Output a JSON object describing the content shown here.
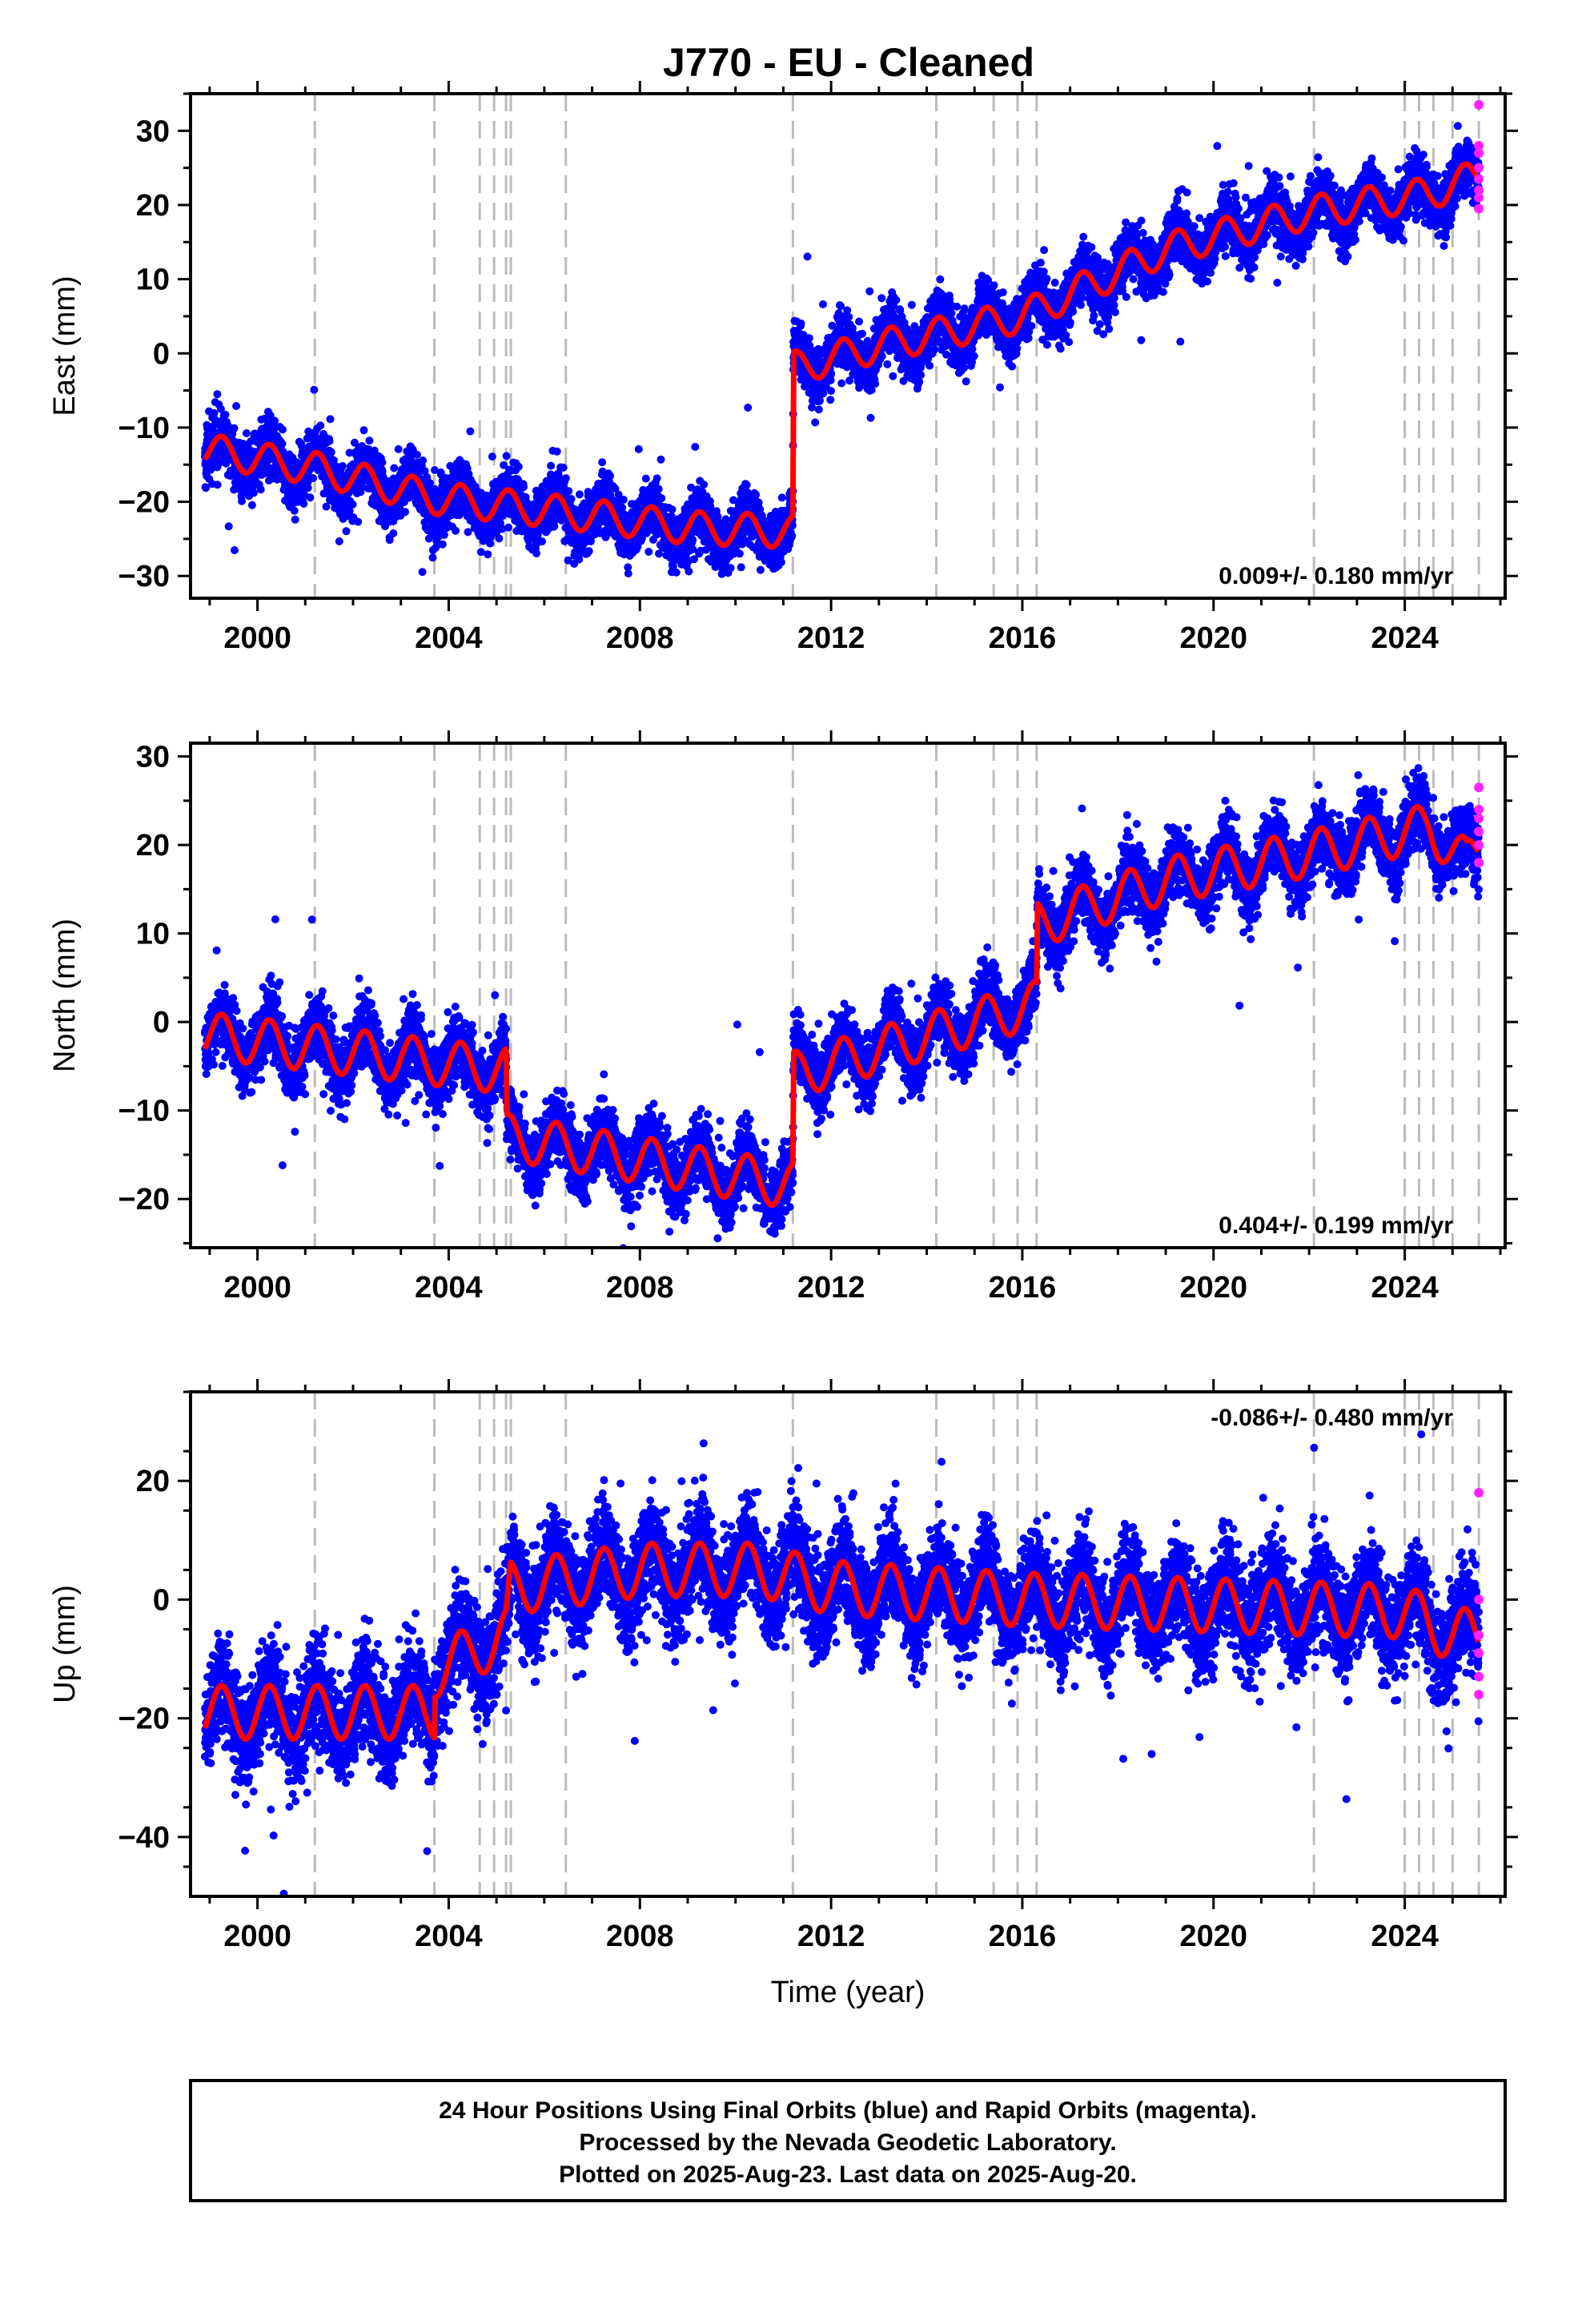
{
  "title": "J770  - EU - Cleaned",
  "colors": {
    "final_orbits": "#0000ff",
    "rapid_orbits": "#ff22ff",
    "model": "#ff0000",
    "offsets": "#bbbbbb"
  },
  "chart_data": [
    {
      "type": "scatter",
      "panel": "east",
      "ylabel": "East (mm)",
      "xlabel": "",
      "xlim": [
        1998.6,
        2026.1
      ],
      "ylim": [
        -33,
        35
      ],
      "xticks": [
        "2000",
        "2004",
        "2008",
        "2012",
        "2016",
        "2020",
        "2024"
      ],
      "yticks": [
        "30",
        "20",
        "10",
        "0",
        "−10",
        "−20",
        "−30"
      ],
      "ytick_values": [
        30,
        20,
        10,
        0,
        -10,
        -20,
        -30
      ],
      "rate_label": "0.009+/- 0.180 mm/yr",
      "rate_position": "bottom-right",
      "offset_epochs": [
        2001.2,
        2003.7,
        2004.65,
        2004.95,
        2005.2,
        2005.3,
        2006.45,
        2011.2,
        2014.2,
        2015.4,
        2015.9,
        2016.3,
        2022.1,
        2024.0,
        2024.3,
        2024.6,
        2025.0,
        2025.55
      ],
      "trend": [
        [
          1998.9,
          -13
        ],
        [
          2001.2,
          -15.5
        ],
        [
          2003.7,
          -19.5
        ],
        [
          2006.5,
          -21.5
        ],
        [
          2009.0,
          -23.5
        ],
        [
          2011.2,
          -24
        ],
        [
          2011.21,
          -2
        ],
        [
          2013.0,
          1
        ],
        [
          2016.0,
          5
        ],
        [
          2019.0,
          14
        ],
        [
          2022.0,
          19
        ],
        [
          2024.5,
          21.5
        ],
        [
          2025.55,
          24
        ]
      ],
      "annual_amplitude": 2.2,
      "noise_sd": 1.8,
      "rapid_points": [
        [
          2025.55,
          33.5
        ],
        [
          2025.55,
          28
        ],
        [
          2025.55,
          27
        ],
        [
          2025.55,
          25
        ],
        [
          2025.55,
          23.5
        ],
        [
          2025.55,
          22
        ],
        [
          2025.55,
          21
        ],
        [
          2025.55,
          19.5
        ]
      ]
    },
    {
      "type": "scatter",
      "panel": "north",
      "ylabel": "North (mm)",
      "xlabel": "",
      "xlim": [
        1998.6,
        2026.1
      ],
      "ylim": [
        -25.5,
        31.5
      ],
      "xticks": [
        "2000",
        "2004",
        "2008",
        "2012",
        "2016",
        "2020",
        "2024"
      ],
      "yticks": [
        "30",
        "20",
        "10",
        "0",
        "−10",
        "−20"
      ],
      "ytick_values": [
        30,
        20,
        10,
        0,
        -10,
        -20
      ],
      "rate_label": "0.404+/- 0.199 mm/yr",
      "rate_position": "bottom-right",
      "offset_epochs": [
        2001.2,
        2003.7,
        2004.65,
        2004.95,
        2005.2,
        2005.3,
        2006.45,
        2011.2,
        2014.2,
        2015.4,
        2015.9,
        2016.3,
        2022.1,
        2024.0,
        2024.3,
        2024.6,
        2025.0,
        2025.55
      ],
      "trend": [
        [
          1998.9,
          -1.5
        ],
        [
          2005.2,
          -5.5
        ],
        [
          2005.21,
          -13
        ],
        [
          2011.2,
          -18.5
        ],
        [
          2011.21,
          -6
        ],
        [
          2016.3,
          2
        ],
        [
          2016.31,
          11
        ],
        [
          2019.0,
          16
        ],
        [
          2022.0,
          19
        ],
        [
          2024.5,
          22
        ],
        [
          2025.3,
          18
        ],
        [
          2025.55,
          20
        ]
      ],
      "annual_amplitude": 2.6,
      "noise_sd": 1.8,
      "rapid_points": [
        [
          2025.55,
          26.5
        ],
        [
          2025.55,
          24
        ],
        [
          2025.55,
          23
        ],
        [
          2025.55,
          21.5
        ],
        [
          2025.55,
          20
        ],
        [
          2025.55,
          18
        ]
      ]
    },
    {
      "type": "scatter",
      "panel": "up",
      "ylabel": "Up (mm)",
      "xlabel": "Time (year)",
      "xlim": [
        1998.6,
        2026.1
      ],
      "ylim": [
        -50,
        35
      ],
      "xticks": [
        "2000",
        "2004",
        "2008",
        "2012",
        "2016",
        "2020",
        "2024"
      ],
      "yticks": [
        "20",
        "0",
        "−20",
        "−40"
      ],
      "ytick_values": [
        20,
        0,
        -20,
        -40
      ],
      "rate_label": "-0.086+/- 0.480 mm/yr",
      "rate_position": "top-right",
      "offset_epochs": [
        2001.2,
        2003.7,
        2004.65,
        2004.95,
        2005.2,
        2005.3,
        2006.45,
        2011.2,
        2014.2,
        2015.4,
        2015.9,
        2016.3,
        2022.1,
        2024.0,
        2024.3,
        2024.6,
        2025.0,
        2025.55
      ],
      "trend": [
        [
          1998.9,
          -19
        ],
        [
          2003.7,
          -19
        ],
        [
          2003.71,
          -12
        ],
        [
          2005.2,
          -6
        ],
        [
          2005.3,
          2
        ],
        [
          2008.0,
          5
        ],
        [
          2010.5,
          5
        ],
        [
          2012.0,
          2
        ],
        [
          2016.0,
          0
        ],
        [
          2020.0,
          -1
        ],
        [
          2024.0,
          -2
        ],
        [
          2025.0,
          -6
        ],
        [
          2025.55,
          -6
        ]
      ],
      "annual_amplitude": 4.5,
      "noise_sd": 4.2,
      "rapid_points": [
        [
          2025.55,
          18
        ],
        [
          2025.55,
          0
        ],
        [
          2025.55,
          -6
        ],
        [
          2025.55,
          -9
        ],
        [
          2025.55,
          -13
        ],
        [
          2025.55,
          -16
        ]
      ]
    }
  ],
  "footer": {
    "line1": "24 Hour Positions Using Final Orbits (blue) and Rapid Orbits (magenta).",
    "line2": "Processed by the Nevada Geodetic Laboratory.",
    "line3": "Plotted on 2025-Aug-23. Last data on 2025-Aug-20."
  }
}
